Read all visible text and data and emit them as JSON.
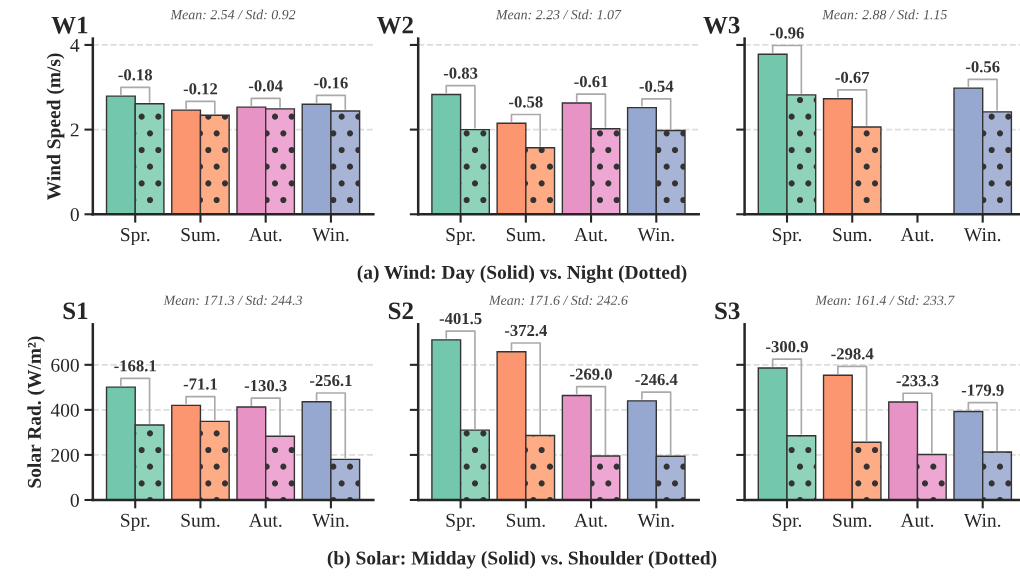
{
  "chart_data": [
    {
      "type": "bar",
      "title": "Mean: 2.54 / Std: 0.92",
      "ylabel": "Wind Speed (m/s)",
      "categories": [
        "Spr.",
        "Sum.",
        "Aut.",
        "Win."
      ],
      "series": [
        {
          "colors": [
            "#73c7ad",
            "#fb9670",
            "#e893c6",
            "#97a8d0"
          ],
          "values": [
            2.79,
            2.46,
            2.53,
            2.6
          ]
        },
        {
          "colors": [
            "#8fd3bb",
            "#fdac86",
            "#eda7d2",
            "#a8b4d6"
          ],
          "line_style": "dotted",
          "values": [
            2.61,
            2.34,
            2.49,
            2.44
          ]
        }
      ],
      "ylim": [
        0,
        4.15
      ],
      "yticks": [
        0,
        2,
        4
      ],
      "grid": "y",
      "annotations": [
        "W1",
        {
          "text": "-0.18",
          "x": "Spr.",
          "y": 2.79
        },
        {
          "text": "-0.12",
          "x": "Sum.",
          "y": 2.46
        },
        {
          "text": "-0.04",
          "x": "Aut.",
          "y": 2.53
        },
        {
          "text": "-0.16",
          "x": "Win.",
          "y": 2.6
        }
      ]
    },
    {
      "type": "bar",
      "title": "Mean: 2.23 / Std: 1.07",
      "xlabel": "(a) Wind: Day (Solid) vs. Night (Dotted)",
      "categories": [
        "Spr.",
        "Sum.",
        "Aut.",
        "Win."
      ],
      "series": [
        {
          "colors": [
            "#73c7ad",
            "#fb9670",
            "#e893c6",
            "#97a8d0"
          ],
          "values": [
            2.83,
            2.15,
            2.63,
            2.52
          ]
        },
        {
          "colors": [
            "#8fd3bb",
            "#fdac86",
            "#eda7d2",
            "#a8b4d6"
          ],
          "line_style": "dotted",
          "values": [
            2.0,
            1.57,
            2.02,
            1.98
          ]
        }
      ],
      "ylim": [
        0,
        4.15
      ],
      "yticks": [
        0,
        2,
        4
      ],
      "grid": "y",
      "tick_labels": "x",
      "annotations": [
        "W2",
        {
          "text": "-0.83",
          "x": "Spr.",
          "y": 2.83
        },
        {
          "text": "-0.58",
          "x": "Sum.",
          "y": 2.15
        },
        {
          "text": "-0.61",
          "x": "Aut.",
          "y": 2.63
        },
        {
          "text": "-0.54",
          "x": "Win.",
          "y": 2.52
        }
      ]
    },
    {
      "type": "bar",
      "title": "Mean: 2.88 / Std: 1.15",
      "categories": [
        "Spr.",
        "Sum.",
        "Aut.",
        "Win."
      ],
      "series": [
        {
          "colors": [
            "#73c7ad",
            "#fb9670",
            "#e893c6",
            "#97a8d0"
          ],
          "values": [
            3.78,
            2.73,
            null,
            2.98
          ]
        },
        {
          "colors": [
            "#8fd3bb",
            "#fdac86",
            "#eda7d2",
            "#a8b4d6"
          ],
          "line_style": "dotted",
          "values": [
            2.82,
            2.06,
            null,
            2.42
          ]
        }
      ],
      "ylim": [
        0,
        4.15
      ],
      "yticks": [
        0,
        2,
        4
      ],
      "grid": "y",
      "tick_labels": "x",
      "annotations": [
        "W3",
        {
          "text": "-0.96",
          "x": "Spr.",
          "y": 3.78
        },
        {
          "text": "-0.67",
          "x": "Sum.",
          "y": 2.73
        },
        {
          "text": "-0.56",
          "x": "Win.",
          "y": 2.98
        }
      ]
    },
    {
      "type": "bar",
      "title": "Mean: 171.3 / Std: 244.3",
      "ylabel": "Solar Rad. (W/m²)",
      "categories": [
        "Spr.",
        "Sum.",
        "Aut.",
        "Win."
      ],
      "series": [
        {
          "colors": [
            "#73c7ad",
            "#fb9670",
            "#e893c6",
            "#97a8d0"
          ],
          "values": [
            501,
            420,
            413,
            436
          ]
        },
        {
          "colors": [
            "#8fd3bb",
            "#fdac86",
            "#eda7d2",
            "#a8b4d6"
          ],
          "line_style": "dotted",
          "values": [
            333,
            349,
            283,
            180
          ]
        }
      ],
      "ylim": [
        0,
        780
      ],
      "yticks": [
        0,
        200,
        400,
        600
      ],
      "grid": "y",
      "annotations": [
        "S1",
        {
          "text": "-168.1",
          "x": "Spr.",
          "y": 501
        },
        {
          "text": "-71.1",
          "x": "Sum.",
          "y": 420
        },
        {
          "text": "-130.3",
          "x": "Aut.",
          "y": 413
        },
        {
          "text": "-256.1",
          "x": "Win.",
          "y": 436
        }
      ]
    },
    {
      "type": "bar",
      "title": "Mean: 171.6 / Std: 242.6",
      "xlabel": "(b) Solar: Midday (Solid) vs. Shoulder (Dotted)",
      "categories": [
        "Spr.",
        "Sum.",
        "Aut.",
        "Win."
      ],
      "series": [
        {
          "colors": [
            "#73c7ad",
            "#fb9670",
            "#e893c6",
            "#97a8d0"
          ],
          "values": [
            711,
            658,
            464,
            440
          ]
        },
        {
          "colors": [
            "#8fd3bb",
            "#fdac86",
            "#eda7d2",
            "#a8b4d6"
          ],
          "line_style": "dotted",
          "values": [
            310,
            286,
            195,
            194
          ]
        }
      ],
      "ylim": [
        0,
        780
      ],
      "yticks": [
        0,
        200,
        400,
        600
      ],
      "grid": "y",
      "tick_labels": "x",
      "annotations": [
        "S2",
        {
          "text": "-401.5",
          "x": "Spr.",
          "y": 711
        },
        {
          "text": "-372.4",
          "x": "Sum.",
          "y": 658
        },
        {
          "text": "-269.0",
          "x": "Aut.",
          "y": 464
        },
        {
          "text": "-246.4",
          "x": "Win.",
          "y": 440
        }
      ]
    },
    {
      "type": "bar",
      "title": "Mean: 161.4 / Std: 233.7",
      "categories": [
        "Spr.",
        "Sum.",
        "Aut.",
        "Win."
      ],
      "series": [
        {
          "colors": [
            "#73c7ad",
            "#fb9670",
            "#e893c6",
            "#97a8d0"
          ],
          "values": [
            586,
            554,
            435,
            393
          ]
        },
        {
          "colors": [
            "#8fd3bb",
            "#fdac86",
            "#eda7d2",
            "#a8b4d6"
          ],
          "line_style": "dotted",
          "values": [
            285,
            256,
            202,
            213
          ]
        }
      ],
      "ylim": [
        0,
        780
      ],
      "yticks": [
        0,
        200,
        400,
        600
      ],
      "grid": "y",
      "tick_labels": "x",
      "annotations": [
        "S3",
        {
          "text": "-300.9",
          "x": "Spr.",
          "y": 586
        },
        {
          "text": "-298.4",
          "x": "Sum.",
          "y": 554
        },
        {
          "text": "-233.3",
          "x": "Aut.",
          "y": 435
        },
        {
          "text": "-179.9",
          "x": "Win.",
          "y": 393
        }
      ]
    }
  ]
}
